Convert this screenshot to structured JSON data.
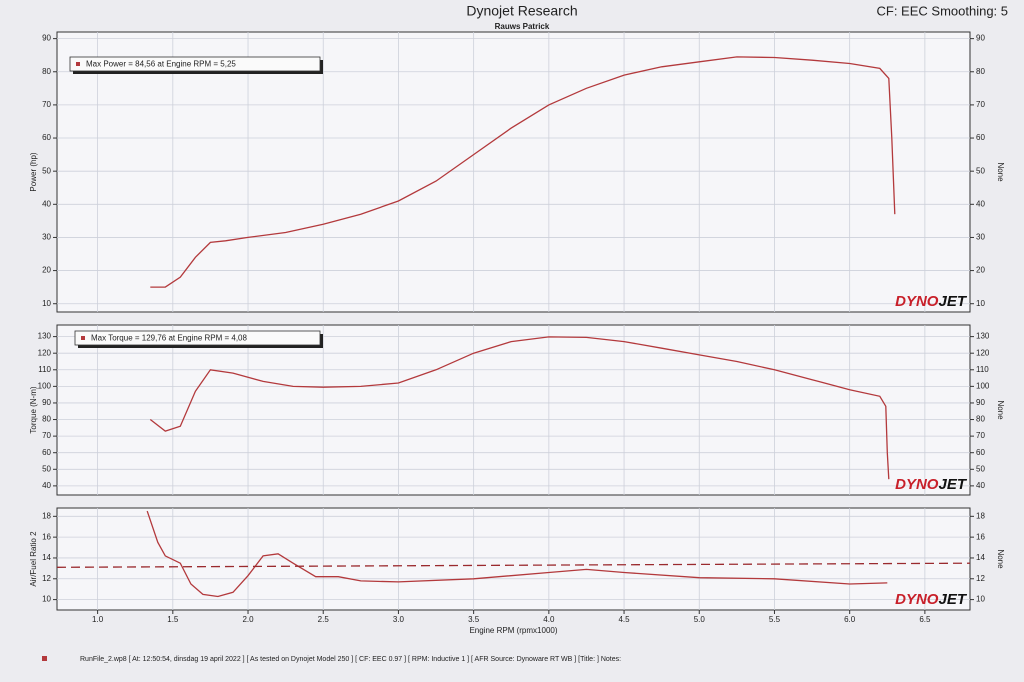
{
  "header": {
    "title": "Dynojet Research",
    "subtitle": "Rauws Patrick",
    "settings": "CF: EEC Smoothing: 5"
  },
  "logo": {
    "red": "DYNO",
    "black": "JET"
  },
  "footer": "RunFile_2.wp8 [ At: 12:50:54, dinsdag 19 april 2022 ] [ As tested on Dynojet Model 250 ] [ CF: EEC 0.97 ] [ RPM: Inductive 1 ] [ AFR Source: Dynoware RT WB ] [Title: ]  Notes:",
  "chart_data": [
    {
      "type": "line",
      "y_label": "Power (hp)",
      "y2_label": "None",
      "grid": true,
      "xlim": [
        0.73,
        6.8
      ],
      "ylim": [
        7.5,
        92
      ],
      "yticks": [
        10,
        20,
        30,
        40,
        50,
        60,
        70,
        80,
        90
      ],
      "y2lim": [
        7.5,
        92
      ],
      "y2ticks": [
        10,
        20,
        30,
        40,
        50,
        60,
        70,
        80,
        90
      ],
      "series": [
        {
          "name": "Max Power = 84,56 at Engine RPM = 5,25",
          "color": "#b3393c",
          "x": [
            1.35,
            1.45,
            1.55,
            1.65,
            1.75,
            1.85,
            2.0,
            2.25,
            2.5,
            2.75,
            3.0,
            3.25,
            3.5,
            3.75,
            4.0,
            4.25,
            4.5,
            4.75,
            5.0,
            5.25,
            5.5,
            5.75,
            6.0,
            6.2,
            6.26,
            6.28,
            6.3
          ],
          "values": [
            15,
            15,
            18,
            24,
            28.5,
            29,
            30,
            31.5,
            34,
            37,
            41,
            47,
            55,
            63,
            70,
            75,
            79,
            81.5,
            83,
            84.5,
            84.3,
            83.5,
            82.5,
            81,
            78,
            60,
            37
          ]
        }
      ]
    },
    {
      "type": "line",
      "y_label": "Torque (N-m)",
      "y2_label": "None",
      "grid": true,
      "xlim": [
        0.73,
        6.8
      ],
      "ylim": [
        34.5,
        137
      ],
      "yticks": [
        40,
        50,
        60,
        70,
        80,
        90,
        100,
        110,
        120,
        130
      ],
      "y2lim": [
        34.5,
        137
      ],
      "y2ticks": [
        40,
        50,
        60,
        70,
        80,
        90,
        100,
        110,
        120,
        130
      ],
      "series": [
        {
          "name": "Max Torque = 129,76 at Engine RPM = 4,08",
          "color": "#b3393c",
          "x": [
            1.35,
            1.45,
            1.55,
            1.65,
            1.75,
            1.9,
            2.1,
            2.3,
            2.5,
            2.75,
            3.0,
            3.25,
            3.5,
            3.75,
            4.0,
            4.25,
            4.5,
            4.75,
            5.0,
            5.25,
            5.5,
            5.75,
            6.0,
            6.2,
            6.24,
            6.25,
            6.26
          ],
          "values": [
            80,
            73,
            76,
            97,
            110,
            108,
            103,
            100,
            99.5,
            100,
            102,
            110,
            120,
            127,
            129.8,
            129.5,
            127,
            123,
            119,
            115,
            110,
            104,
            98,
            94,
            88,
            60,
            44
          ]
        }
      ]
    },
    {
      "type": "line",
      "y_label": "Air/Fuel Ratio 2",
      "y2_label": "None",
      "x_label": "Engine RPM (rpmx1000)",
      "grid": true,
      "xlim": [
        0.73,
        6.8
      ],
      "ylim": [
        9,
        18.8
      ],
      "yticks": [
        10,
        12,
        14,
        16,
        18
      ],
      "y2lim": [
        9,
        18.8
      ],
      "y2ticks": [
        10,
        12,
        14,
        16,
        18
      ],
      "xticks": [
        {
          "value": 1,
          "label": "1.0"
        },
        1.5,
        {
          "value": 2,
          "label": "2.0"
        },
        2.5,
        {
          "value": 3,
          "label": "3.0"
        },
        3.5,
        {
          "value": 4,
          "label": "4.0"
        },
        4.5,
        {
          "value": 5,
          "label": "5.0"
        },
        5.5,
        {
          "value": 6,
          "label": "6.0"
        },
        6.5
      ],
      "series": [
        {
          "color": "#b3393c",
          "x": [
            1.33,
            1.4,
            1.45,
            1.55,
            1.62,
            1.7,
            1.8,
            1.9,
            2.0,
            2.1,
            2.2,
            2.3,
            2.45,
            2.6,
            2.75,
            3.0,
            3.5,
            4.0,
            4.25,
            4.5,
            5.0,
            5.5,
            6.0,
            6.25
          ],
          "values": [
            18.5,
            15.5,
            14.2,
            13.5,
            11.5,
            10.5,
            10.3,
            10.7,
            12.3,
            14.2,
            14.4,
            13.5,
            12.2,
            12.2,
            11.8,
            11.7,
            12.0,
            12.6,
            12.9,
            12.6,
            12.1,
            12.0,
            11.5,
            11.6
          ]
        },
        {
          "color": "#9a2a2e",
          "dashed": true,
          "x": [
            0.73,
            6.8
          ],
          "values": [
            13.1,
            13.5
          ]
        }
      ]
    }
  ]
}
